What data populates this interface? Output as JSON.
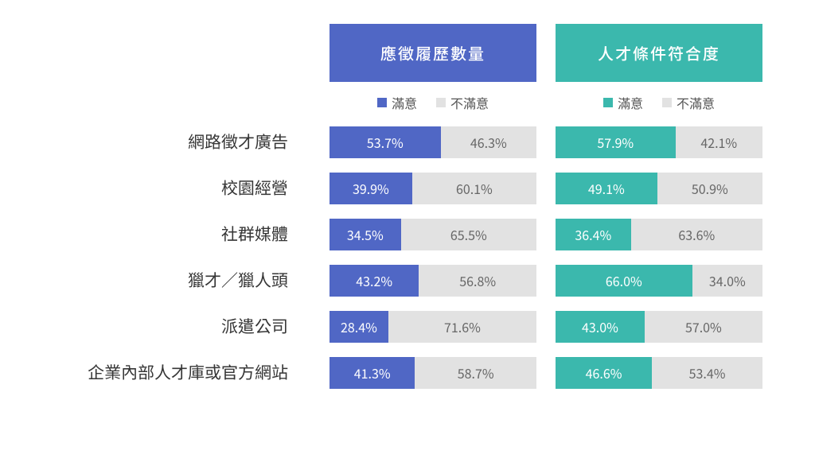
{
  "chart": {
    "type": "stacked-bar-table",
    "background_color": "#ffffff",
    "text_color": "#363636",
    "label_fontsize": 21,
    "value_fontsize": 16,
    "columns": [
      {
        "title": "應徵履歷數量",
        "header_bg": "#5067c5",
        "satisfied_color": "#5067c5",
        "unsatisfied_color": "#e2e2e2",
        "satisfied_text_color": "#ffffff",
        "unsatisfied_text_color": "#666666",
        "legend_satisfied": "滿意",
        "legend_unsatisfied": "不滿意"
      },
      {
        "title": "人才條件符合度",
        "header_bg": "#3bb8ad",
        "satisfied_color": "#3bb8ad",
        "unsatisfied_color": "#e2e2e2",
        "satisfied_text_color": "#ffffff",
        "unsatisfied_text_color": "#666666",
        "legend_satisfied": "滿意",
        "legend_unsatisfied": "不滿意"
      }
    ],
    "rows": [
      {
        "label": "網路徵才廣告",
        "cols": [
          {
            "satisfied": 53.7,
            "unsatisfied": 46.3
          },
          {
            "satisfied": 57.9,
            "unsatisfied": 42.1
          }
        ]
      },
      {
        "label": "校園經營",
        "cols": [
          {
            "satisfied": 39.9,
            "unsatisfied": 60.1
          },
          {
            "satisfied": 49.1,
            "unsatisfied": 50.9
          }
        ]
      },
      {
        "label": "社群媒體",
        "cols": [
          {
            "satisfied": 34.5,
            "unsatisfied": 65.5
          },
          {
            "satisfied": 36.4,
            "unsatisfied": 63.6
          }
        ]
      },
      {
        "label": "獵才／獵人頭",
        "cols": [
          {
            "satisfied": 43.2,
            "unsatisfied": 56.8
          },
          {
            "satisfied": 66.0,
            "unsatisfied": 34.0
          }
        ]
      },
      {
        "label": "派遣公司",
        "cols": [
          {
            "satisfied": 28.4,
            "unsatisfied": 71.6
          },
          {
            "satisfied": 43.0,
            "unsatisfied": 57.0
          }
        ]
      },
      {
        "label": "企業內部人才庫或官方網站",
        "cols": [
          {
            "satisfied": 41.3,
            "unsatisfied": 58.7
          },
          {
            "satisfied": 46.6,
            "unsatisfied": 53.4
          }
        ]
      }
    ]
  }
}
